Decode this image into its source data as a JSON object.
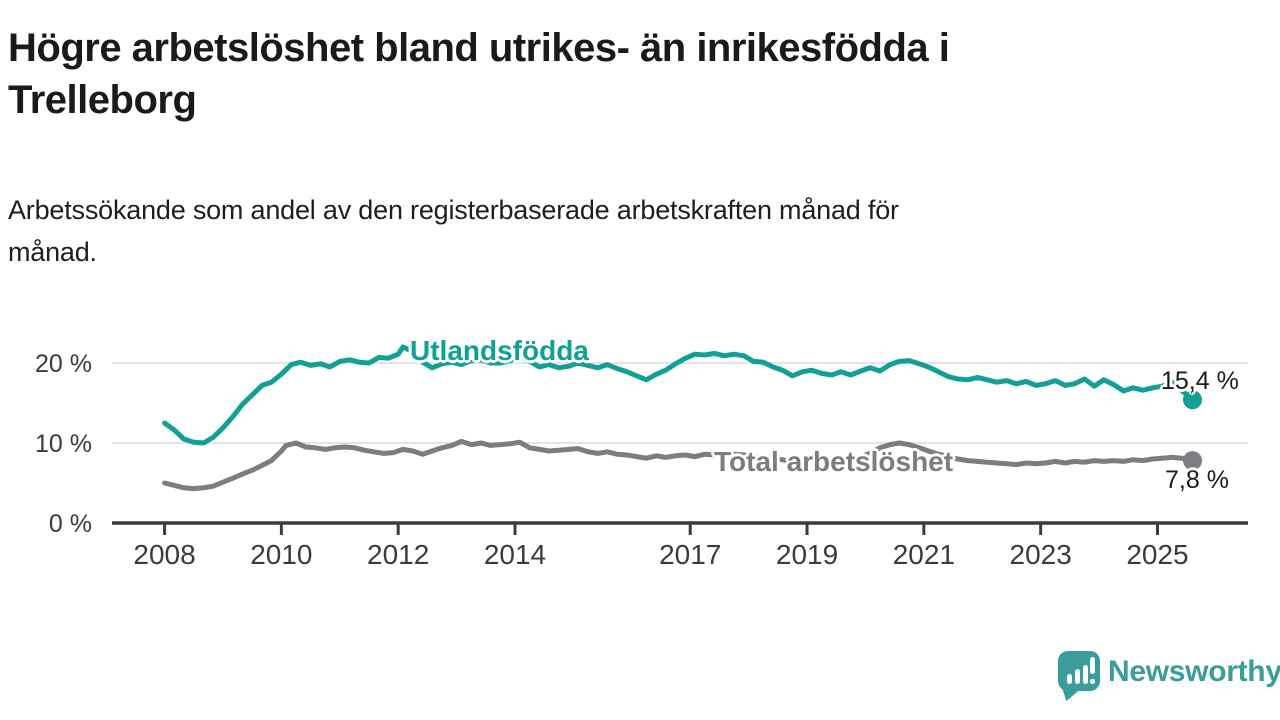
{
  "title": "Högre arbetslöshet bland utrikes- än inrikesfödda i\nTrelleborg",
  "subtitle": "Arbetssökande som andel av den registerbaserade arbetskraften månad för\nmånad.",
  "footer": {
    "brand": "Newsworthy",
    "brand_color": "#3a9d9b",
    "logo_icon": "speech-bubble-bar-chart-icon"
  },
  "chart_data": {
    "type": "line",
    "title": "Högre arbetslöshet bland utrikes- än inrikesfödda i Trelleborg",
    "subtitle": "Arbetssökande som andel av den registerbaserade arbetskraften månad för månad.",
    "xlabel": "",
    "ylabel": "",
    "x_domain": [
      2007.1,
      2026.55
    ],
    "y_domain": [
      0,
      25
    ],
    "x_ticks": [
      2008,
      2010,
      2012,
      2014,
      2017,
      2019,
      2021,
      2023,
      2025
    ],
    "y_ticks": [
      0,
      10,
      20
    ],
    "y_tick_suffix": " %",
    "grid": "horizontal",
    "legend_position": "inline-labels",
    "grid_color": "#e3e3e3",
    "axis_color": "#3c3c3c",
    "tick_label_color": "#3b3b3b",
    "series": [
      {
        "name": "Utlandsfödda",
        "color": "#12a096",
        "end_label": "15,4 %",
        "end_value": 15.4,
        "points": [
          [
            2008.0,
            12.5
          ],
          [
            2008.17,
            11.6
          ],
          [
            2008.33,
            10.5
          ],
          [
            2008.5,
            10.1
          ],
          [
            2008.67,
            10.0
          ],
          [
            2008.83,
            10.7
          ],
          [
            2009.0,
            11.9
          ],
          [
            2009.17,
            13.3
          ],
          [
            2009.33,
            14.8
          ],
          [
            2009.5,
            16.0
          ],
          [
            2009.67,
            17.2
          ],
          [
            2009.83,
            17.6
          ],
          [
            2010.0,
            18.6
          ],
          [
            2010.17,
            19.8
          ],
          [
            2010.33,
            20.1
          ],
          [
            2010.5,
            19.7
          ],
          [
            2010.67,
            19.9
          ],
          [
            2010.83,
            19.5
          ],
          [
            2011.0,
            20.2
          ],
          [
            2011.17,
            20.4
          ],
          [
            2011.33,
            20.1
          ],
          [
            2011.5,
            20.0
          ],
          [
            2011.67,
            20.7
          ],
          [
            2011.83,
            20.6
          ],
          [
            2012.0,
            21.1
          ],
          [
            2012.08,
            22.0
          ],
          [
            2012.25,
            21.4
          ],
          [
            2012.42,
            20.1
          ],
          [
            2012.58,
            19.4
          ],
          [
            2012.75,
            19.9
          ],
          [
            2012.92,
            20.1
          ],
          [
            2013.08,
            19.8
          ],
          [
            2013.25,
            20.3
          ],
          [
            2013.42,
            20.4
          ],
          [
            2013.58,
            20.0
          ],
          [
            2013.75,
            20.0
          ],
          [
            2013.92,
            20.3
          ],
          [
            2014.08,
            20.9
          ],
          [
            2014.25,
            20.2
          ],
          [
            2014.42,
            19.5
          ],
          [
            2014.58,
            19.8
          ],
          [
            2014.75,
            19.4
          ],
          [
            2014.92,
            19.6
          ],
          [
            2015.08,
            20.0
          ],
          [
            2015.25,
            19.7
          ],
          [
            2015.42,
            19.4
          ],
          [
            2015.58,
            19.8
          ],
          [
            2015.75,
            19.3
          ],
          [
            2015.92,
            18.9
          ],
          [
            2016.08,
            18.4
          ],
          [
            2016.25,
            17.9
          ],
          [
            2016.42,
            18.6
          ],
          [
            2016.58,
            19.1
          ],
          [
            2016.75,
            19.9
          ],
          [
            2016.92,
            20.6
          ],
          [
            2017.08,
            21.1
          ],
          [
            2017.25,
            21.0
          ],
          [
            2017.42,
            21.2
          ],
          [
            2017.58,
            20.9
          ],
          [
            2017.75,
            21.1
          ],
          [
            2017.92,
            20.9
          ],
          [
            2018.08,
            20.2
          ],
          [
            2018.25,
            20.1
          ],
          [
            2018.42,
            19.5
          ],
          [
            2018.58,
            19.1
          ],
          [
            2018.75,
            18.4
          ],
          [
            2018.92,
            18.9
          ],
          [
            2019.08,
            19.1
          ],
          [
            2019.25,
            18.7
          ],
          [
            2019.42,
            18.5
          ],
          [
            2019.58,
            18.9
          ],
          [
            2019.75,
            18.5
          ],
          [
            2019.92,
            19.0
          ],
          [
            2020.08,
            19.4
          ],
          [
            2020.25,
            19.0
          ],
          [
            2020.42,
            19.8
          ],
          [
            2020.58,
            20.2
          ],
          [
            2020.75,
            20.3
          ],
          [
            2020.92,
            19.9
          ],
          [
            2021.08,
            19.5
          ],
          [
            2021.25,
            18.9
          ],
          [
            2021.42,
            18.3
          ],
          [
            2021.58,
            18.0
          ],
          [
            2021.75,
            17.9
          ],
          [
            2021.92,
            18.2
          ],
          [
            2022.08,
            17.9
          ],
          [
            2022.25,
            17.6
          ],
          [
            2022.42,
            17.8
          ],
          [
            2022.58,
            17.4
          ],
          [
            2022.75,
            17.7
          ],
          [
            2022.92,
            17.2
          ],
          [
            2023.08,
            17.4
          ],
          [
            2023.25,
            17.8
          ],
          [
            2023.42,
            17.2
          ],
          [
            2023.58,
            17.4
          ],
          [
            2023.75,
            18.0
          ],
          [
            2023.92,
            17.1
          ],
          [
            2024.08,
            17.9
          ],
          [
            2024.25,
            17.3
          ],
          [
            2024.42,
            16.5
          ],
          [
            2024.58,
            16.9
          ],
          [
            2024.75,
            16.6
          ],
          [
            2024.92,
            16.9
          ],
          [
            2025.08,
            17.1
          ],
          [
            2025.25,
            17.6
          ],
          [
            2025.6,
            15.4
          ]
        ]
      },
      {
        "name": "Total arbetslöshet",
        "color": "#7c7c81",
        "end_label": "7,8 %",
        "end_value": 7.8,
        "points": [
          [
            2008.0,
            5.0
          ],
          [
            2008.17,
            4.7
          ],
          [
            2008.33,
            4.4
          ],
          [
            2008.5,
            4.3
          ],
          [
            2008.67,
            4.4
          ],
          [
            2008.83,
            4.6
          ],
          [
            2009.0,
            5.1
          ],
          [
            2009.17,
            5.6
          ],
          [
            2009.33,
            6.1
          ],
          [
            2009.5,
            6.6
          ],
          [
            2009.67,
            7.2
          ],
          [
            2009.83,
            7.8
          ],
          [
            2010.0,
            9.0
          ],
          [
            2010.08,
            9.7
          ],
          [
            2010.25,
            10.0
          ],
          [
            2010.42,
            9.5
          ],
          [
            2010.58,
            9.4
          ],
          [
            2010.75,
            9.2
          ],
          [
            2010.92,
            9.4
          ],
          [
            2011.08,
            9.5
          ],
          [
            2011.25,
            9.4
          ],
          [
            2011.42,
            9.1
          ],
          [
            2011.58,
            8.9
          ],
          [
            2011.75,
            8.7
          ],
          [
            2011.92,
            8.8
          ],
          [
            2012.08,
            9.2
          ],
          [
            2012.25,
            9.0
          ],
          [
            2012.42,
            8.6
          ],
          [
            2012.58,
            9.0
          ],
          [
            2012.75,
            9.4
          ],
          [
            2012.92,
            9.7
          ],
          [
            2013.08,
            10.2
          ],
          [
            2013.25,
            9.8
          ],
          [
            2013.42,
            10.0
          ],
          [
            2013.58,
            9.7
          ],
          [
            2013.75,
            9.8
          ],
          [
            2013.92,
            9.9
          ],
          [
            2014.08,
            10.1
          ],
          [
            2014.25,
            9.4
          ],
          [
            2014.42,
            9.2
          ],
          [
            2014.58,
            9.0
          ],
          [
            2014.75,
            9.1
          ],
          [
            2014.92,
            9.2
          ],
          [
            2015.08,
            9.3
          ],
          [
            2015.25,
            8.9
          ],
          [
            2015.42,
            8.7
          ],
          [
            2015.58,
            8.9
          ],
          [
            2015.75,
            8.6
          ],
          [
            2015.92,
            8.5
          ],
          [
            2016.08,
            8.3
          ],
          [
            2016.25,
            8.1
          ],
          [
            2016.42,
            8.4
          ],
          [
            2016.58,
            8.2
          ],
          [
            2016.75,
            8.4
          ],
          [
            2016.92,
            8.5
          ],
          [
            2017.08,
            8.3
          ],
          [
            2017.25,
            8.6
          ],
          [
            2017.42,
            8.5
          ],
          [
            2017.58,
            8.4
          ],
          [
            2017.75,
            8.6
          ],
          [
            2017.92,
            8.5
          ],
          [
            2018.08,
            8.3
          ],
          [
            2018.25,
            8.1
          ],
          [
            2018.42,
            8.0
          ],
          [
            2018.58,
            7.9
          ],
          [
            2018.75,
            7.7
          ],
          [
            2018.92,
            7.8
          ],
          [
            2019.08,
            7.9
          ],
          [
            2019.25,
            7.7
          ],
          [
            2019.42,
            7.8
          ],
          [
            2019.58,
            7.9
          ],
          [
            2019.75,
            8.0
          ],
          [
            2019.92,
            8.3
          ],
          [
            2020.08,
            8.7
          ],
          [
            2020.25,
            9.4
          ],
          [
            2020.42,
            9.8
          ],
          [
            2020.58,
            10.0
          ],
          [
            2020.75,
            9.8
          ],
          [
            2020.92,
            9.4
          ],
          [
            2021.08,
            9.0
          ],
          [
            2021.25,
            8.6
          ],
          [
            2021.42,
            8.3
          ],
          [
            2021.58,
            8.0
          ],
          [
            2021.75,
            7.8
          ],
          [
            2021.92,
            7.7
          ],
          [
            2022.08,
            7.6
          ],
          [
            2022.25,
            7.5
          ],
          [
            2022.42,
            7.4
          ],
          [
            2022.58,
            7.3
          ],
          [
            2022.75,
            7.5
          ],
          [
            2022.92,
            7.4
          ],
          [
            2023.08,
            7.5
          ],
          [
            2023.25,
            7.7
          ],
          [
            2023.42,
            7.5
          ],
          [
            2023.58,
            7.7
          ],
          [
            2023.75,
            7.6
          ],
          [
            2023.92,
            7.8
          ],
          [
            2024.08,
            7.7
          ],
          [
            2024.25,
            7.8
          ],
          [
            2024.42,
            7.7
          ],
          [
            2024.58,
            7.9
          ],
          [
            2024.75,
            7.8
          ],
          [
            2024.92,
            8.0
          ],
          [
            2025.08,
            8.1
          ],
          [
            2025.25,
            8.2
          ],
          [
            2025.42,
            8.1
          ],
          [
            2025.6,
            7.8
          ]
        ]
      }
    ]
  }
}
